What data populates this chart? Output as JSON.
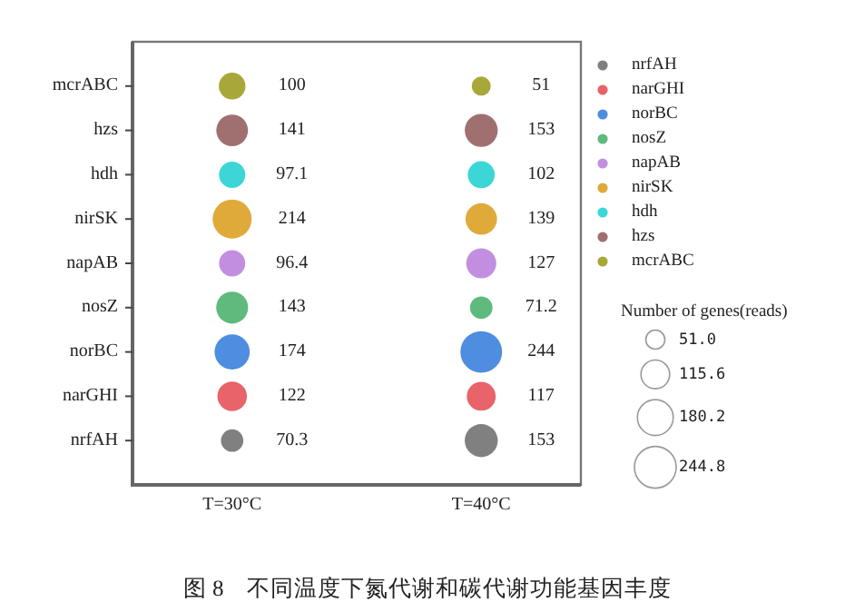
{
  "chart_data": {
    "type": "heatmap",
    "categories": [
      "T=30°C",
      "T=40°C"
    ],
    "y_categories": [
      "mcrABC",
      "hzs",
      "hdh",
      "nirSK",
      "napAB",
      "nosZ",
      "norBC",
      "narGHI",
      "nrfAH"
    ],
    "cells": [
      [
        100,
        51
      ],
      [
        141,
        153
      ],
      [
        97.1,
        102
      ],
      [
        214,
        139
      ],
      [
        96.4,
        127
      ],
      [
        143,
        71.2
      ],
      [
        174,
        244
      ],
      [
        122,
        117
      ],
      [
        70.3,
        153
      ]
    ],
    "colors": [
      "#a8a83a",
      "#a07070",
      "#3dd6d6",
      "#e0aa3a",
      "#c28fe0",
      "#5fba7d",
      "#4e8de0",
      "#e8636a",
      "#808080"
    ],
    "data_labels": true,
    "legend_title": "Number of genes(reads)",
    "annotations": [
      "51.0",
      "115.6",
      "180.2",
      "244.8"
    ],
    "title": "图 8　不同温度下氮代谢和碳代谢功能基因丰度"
  }
}
